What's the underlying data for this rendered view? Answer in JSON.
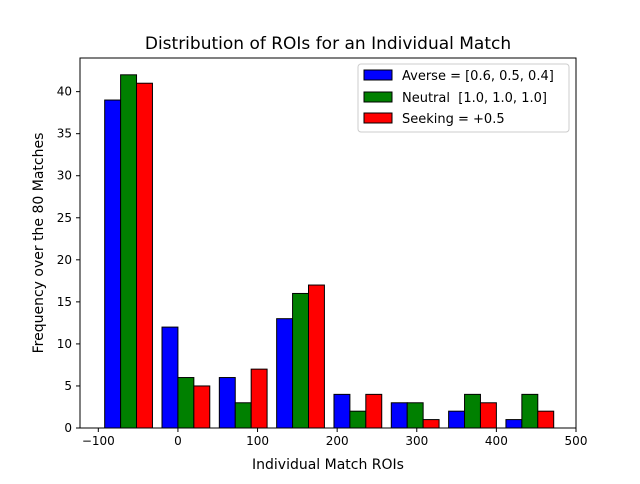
{
  "chart_data": {
    "type": "bar",
    "title": "Distribution of ROIs for an Individual Match",
    "xlabel": "Individual Match ROIs",
    "ylabel": "Frequency over the 80 Matches",
    "xlim": [
      -123,
      500
    ],
    "ylim": [
      0,
      44
    ],
    "xticks": [
      -100,
      0,
      100,
      200,
      300,
      400,
      500
    ],
    "yticks": [
      0,
      5,
      10,
      15,
      20,
      25,
      30,
      35,
      40
    ],
    "xtick_labels": [
      "−100",
      "0",
      "100",
      "200",
      "300",
      "400",
      "500"
    ],
    "ytick_labels": [
      "0",
      "5",
      "10",
      "15",
      "20",
      "25",
      "30",
      "35",
      "40"
    ],
    "bins": [
      [
        -92,
        -32
      ],
      [
        -20,
        40
      ],
      [
        52,
        112
      ],
      [
        124,
        184
      ],
      [
        196,
        256
      ],
      [
        268,
        328
      ],
      [
        340,
        400
      ],
      [
        412,
        472
      ]
    ],
    "grid": false,
    "legend_position": "top-right",
    "series": [
      {
        "name": "Averse = [0.6, 0.5, 0.4]",
        "color": "#0000ff",
        "values": [
          39,
          12,
          6,
          13,
          4,
          3,
          2,
          1
        ]
      },
      {
        "name": "Neutral  [1.0, 1.0, 1.0]",
        "color": "#008000",
        "values": [
          42,
          6,
          3,
          16,
          2,
          3,
          4,
          4
        ]
      },
      {
        "name": "Seeking = +0.5",
        "color": "#ff0000",
        "values": [
          41,
          5,
          7,
          17,
          4,
          1,
          3,
          2
        ]
      }
    ]
  }
}
